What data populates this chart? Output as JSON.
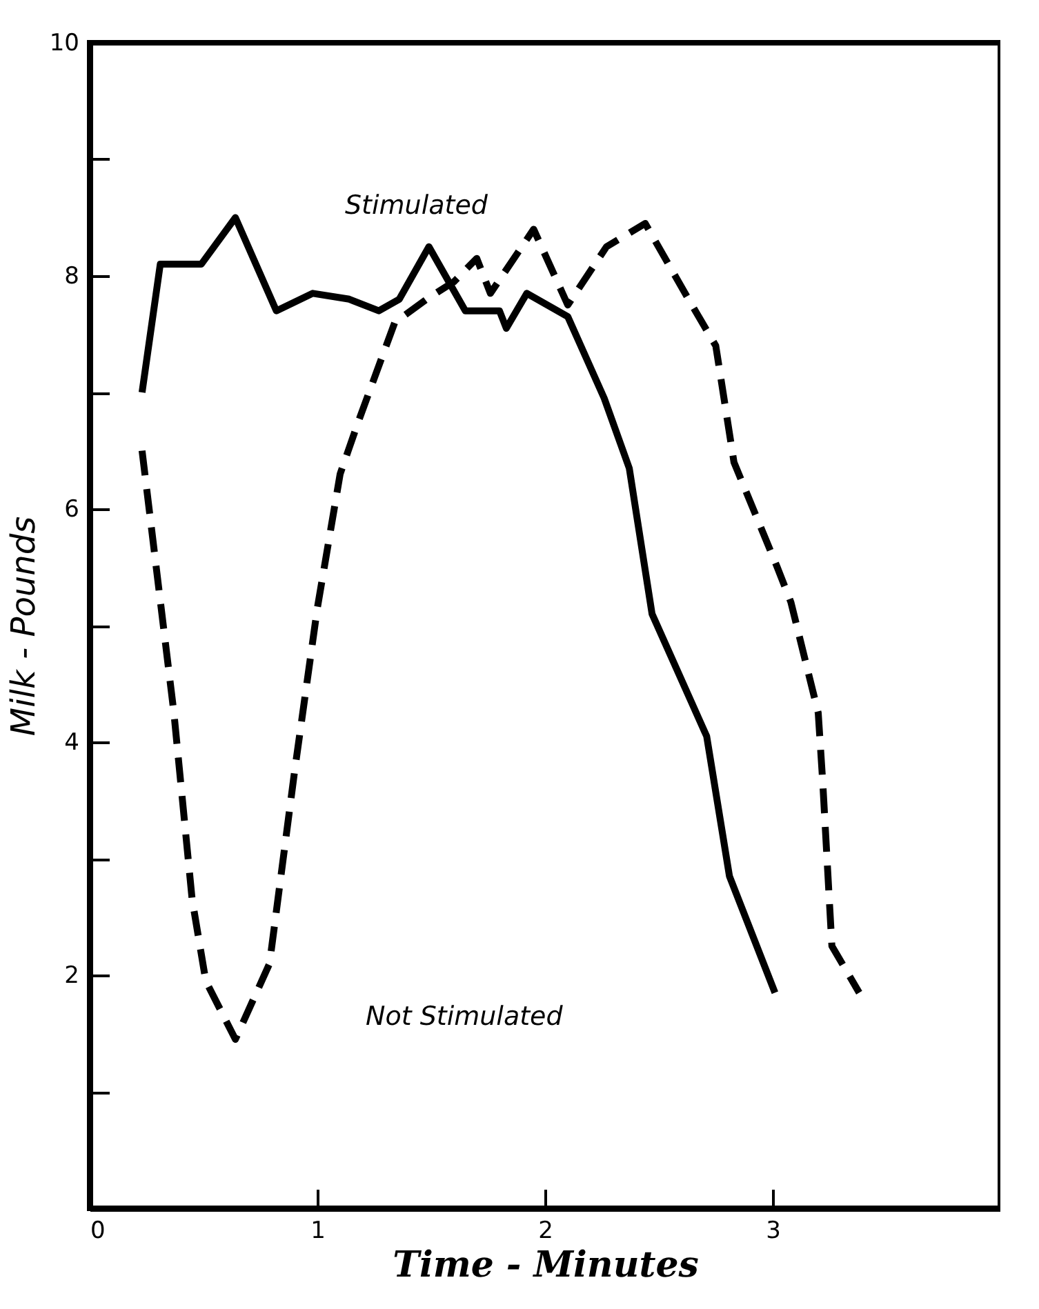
{
  "chart_data": {
    "type": "line",
    "xlabel": "Time - Minutes",
    "ylabel": "Milk - Pounds",
    "xlim": [
      0,
      4
    ],
    "xticks": [
      0,
      1,
      2,
      3
    ],
    "ylim": [
      0,
      10
    ],
    "yticks": [
      {
        "value": 1,
        "label": null
      },
      2,
      {
        "value": 3,
        "label": null
      },
      4,
      {
        "value": 5,
        "label": null
      },
      6,
      {
        "value": 7,
        "label": null
      },
      8,
      {
        "value": 9,
        "label": null
      },
      10
    ],
    "series": [
      {
        "color": "#000000",
        "line_style": "solid",
        "x": [
          0.23,
          0.31,
          0.49,
          0.64,
          0.82,
          0.98,
          1.14,
          1.27,
          1.36,
          1.49,
          1.65,
          1.8,
          1.83,
          1.92,
          2.1,
          2.26,
          2.37,
          2.47,
          2.71,
          2.81,
          3.01
        ],
        "values": [
          7.0,
          8.1,
          8.1,
          8.5,
          7.7,
          7.85,
          7.8,
          7.7,
          7.8,
          8.25,
          7.7,
          7.7,
          7.55,
          7.85,
          7.65,
          6.95,
          6.35,
          5.1,
          4.05,
          2.85,
          1.85
        ]
      },
      {
        "color": "#000000",
        "line_style": "dashed",
        "x": [
          0.23,
          0.37,
          0.45,
          0.51,
          0.64,
          0.79,
          0.9,
          1.0,
          1.1,
          1.18,
          1.34,
          1.48,
          1.6,
          1.7,
          1.76,
          1.95,
          2.1,
          2.27,
          2.44,
          2.63,
          2.75,
          2.79,
          2.83,
          3.02,
          3.08,
          3.2,
          3.22,
          3.26,
          3.38
        ],
        "values": [
          6.5,
          4.25,
          2.65,
          1.95,
          1.45,
          2.1,
          3.75,
          5.15,
          6.3,
          6.75,
          7.6,
          7.8,
          7.95,
          8.15,
          7.85,
          8.4,
          7.75,
          8.25,
          8.45,
          7.8,
          7.4,
          6.9,
          6.4,
          5.5,
          5.2,
          4.25,
          3.65,
          2.25,
          1.85
        ]
      }
    ],
    "annotations": [
      "Stimulated",
      "Not Stimulated"
    ]
  }
}
